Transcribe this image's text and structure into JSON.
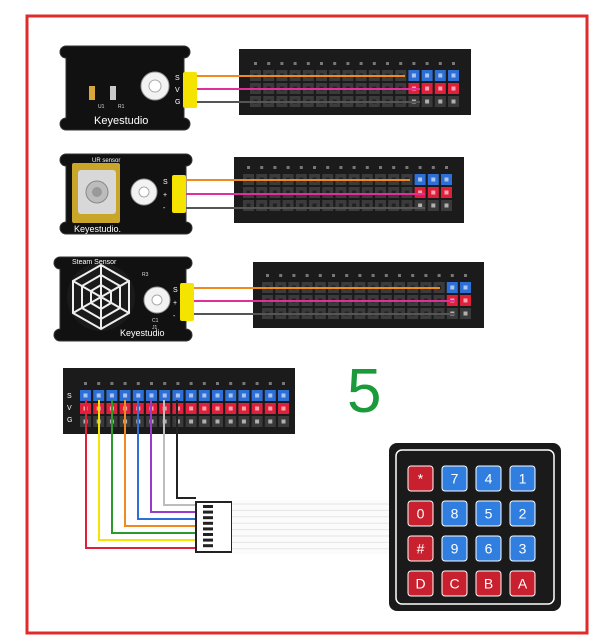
{
  "step_number": "5",
  "modules": [
    {
      "brand": "Keyestudio",
      "title": "",
      "chips": [
        "U1",
        "R1"
      ],
      "pins": [
        "S",
        "V",
        "G"
      ]
    },
    {
      "brand": "Keyestudio.",
      "title": "UR sensor",
      "chips": [],
      "pins": [
        "S",
        "+",
        "-"
      ]
    },
    {
      "brand": "Keyestudio",
      "title": "Steam Sensor",
      "chips": [
        "R3",
        "C1",
        "J1"
      ],
      "pins": [
        "S",
        "+",
        "-"
      ]
    }
  ],
  "bottom_header_labels": [
    "S",
    "V",
    "G"
  ],
  "keypad": {
    "keys": [
      [
        "*",
        "7",
        "4",
        "1"
      ],
      [
        "0",
        "8",
        "5",
        "2"
      ],
      [
        "#",
        "9",
        "6",
        "3"
      ],
      [
        "D",
        "C",
        "B",
        "A"
      ]
    ]
  },
  "colors": {
    "border": "#e02b2b",
    "step_number": "#1a9a3a",
    "board": "#1b1b1b",
    "pin_yellow": "#f5e300",
    "wire_orange": "#f08a1c",
    "wire_pink": "#e02f9b",
    "wire_gray": "#555555",
    "header_blue": "#2d6fd4",
    "header_red": "#e0203a",
    "key_red": "#c8202e",
    "key_blue": "#2f7ee0"
  }
}
